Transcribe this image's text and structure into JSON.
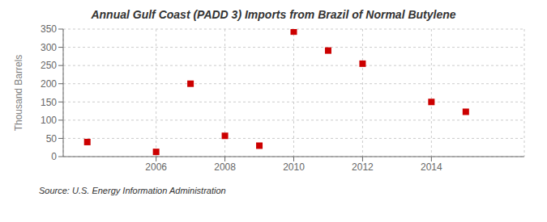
{
  "chart_data": {
    "type": "scatter",
    "title": "Annual Gulf Coast (PADD 3) Imports from Brazil of Normal Butylene",
    "ylabel": "Thousand Barrels",
    "annotations": [
      "Source: U.S. Energy Information Administration"
    ],
    "x": [
      2004,
      2006,
      2007,
      2008,
      2009,
      2010,
      2011,
      2012,
      2014,
      2015
    ],
    "values": [
      40,
      13,
      200,
      57,
      30,
      343,
      291,
      255,
      150,
      123
    ],
    "color": "#cc0000",
    "marker": "square",
    "xlim": [
      2003.3,
      2016.7
    ],
    "ylim": [
      0,
      350
    ],
    "xticks": [
      2006,
      2008,
      2010,
      2012,
      2014
    ],
    "yticks": [
      0,
      50,
      100,
      150,
      200,
      250,
      300,
      350
    ],
    "grid": true
  }
}
